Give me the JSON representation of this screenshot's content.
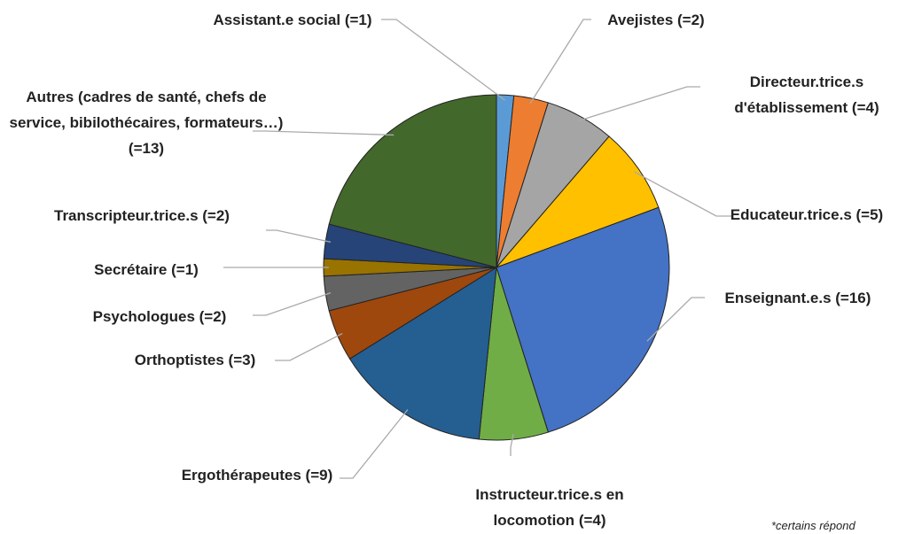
{
  "chart_data": {
    "type": "pie",
    "categories": [
      "Assistant.e social",
      "Avejistes",
      "Directeur.trice.s d'établissement",
      "Educateur.trice.s",
      "Enseignant.e.s",
      "Instructeur.trice.s en locomotion",
      "Ergothérapeutes",
      "Orthoptistes",
      "Psychologues",
      "Secrétaire",
      "Transcripteur.trice.s",
      "Autres (cadres de santé, chefs de service, bibilothécaires, formateurs…)"
    ],
    "values": [
      1,
      2,
      4,
      5,
      16,
      4,
      9,
      3,
      2,
      1,
      2,
      13
    ],
    "value_labels": [
      "(=1)",
      "(=2)",
      "(=4)",
      "(=5)",
      "(=16)",
      "(=4)",
      "(=9)",
      "(=3)",
      "(=2)",
      "(=1)",
      "(=2)",
      "(=13)"
    ],
    "colors": [
      "#5b9bd5",
      "#ed7d31",
      "#a5a5a5",
      "#ffc000",
      "#4472c4",
      "#70ad47",
      "#255e91",
      "#9e480e",
      "#636363",
      "#997300",
      "#264478",
      "#43682b"
    ],
    "note": "*certains répond"
  }
}
